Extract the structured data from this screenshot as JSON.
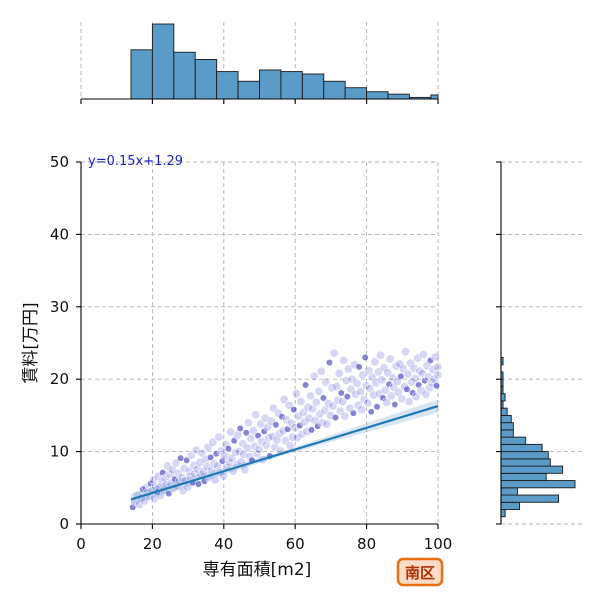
{
  "chart_data": {
    "type": "scatter",
    "xlabel": "専有面積[m2]",
    "ylabel": "賃料[万円]",
    "xlim": [
      0,
      100
    ],
    "ylim": [
      0,
      50
    ],
    "xticks": [
      0,
      20,
      40,
      60,
      80,
      100
    ],
    "yticks": [
      0,
      10,
      20,
      30,
      40,
      50
    ],
    "grid": true,
    "regression": {
      "equation": "y=0.15x+1.29",
      "slope": 0.15,
      "intercept": 1.29,
      "x_range": [
        14,
        100
      ]
    },
    "badge": "南区",
    "top_histogram": {
      "bin_edges": [
        14,
        20,
        26,
        32,
        38,
        44,
        50,
        56,
        62,
        68,
        74,
        80,
        86,
        92,
        98,
        104
      ],
      "counts": [
        61,
        93,
        58,
        49,
        34,
        22,
        36,
        34,
        31,
        22,
        14,
        9,
        6,
        2,
        5
      ]
    },
    "right_histogram": {
      "bin_edges": [
        1,
        2,
        3,
        4,
        5,
        6,
        7,
        8,
        9,
        10,
        11,
        12,
        13,
        14,
        15,
        16,
        17,
        18,
        19,
        20,
        21,
        22,
        23
      ],
      "counts": [
        2,
        9,
        28,
        8,
        36,
        22,
        30,
        24,
        23,
        20,
        12,
        6,
        6,
        5,
        3,
        1,
        2,
        1,
        1,
        1,
        0,
        1
      ]
    },
    "points": [
      [
        14.5,
        2.3
      ],
      [
        15.2,
        3.1
      ],
      [
        15.8,
        4.0
      ],
      [
        16.4,
        2.7
      ],
      [
        16.9,
        3.6
      ],
      [
        17.3,
        4.8
      ],
      [
        17.8,
        3.2
      ],
      [
        18.2,
        5.0
      ],
      [
        18.6,
        4.3
      ],
      [
        19.1,
        3.8
      ],
      [
        19.5,
        5.6
      ],
      [
        19.9,
        4.6
      ],
      [
        20.3,
        6.1
      ],
      [
        20.6,
        3.5
      ],
      [
        20.9,
        5.2
      ],
      [
        21.3,
        4.4
      ],
      [
        21.6,
        6.6
      ],
      [
        21.9,
        5.0
      ],
      [
        22.3,
        3.9
      ],
      [
        22.6,
        5.8
      ],
      [
        22.9,
        7.1
      ],
      [
        23.2,
        4.7
      ],
      [
        23.6,
        6.3
      ],
      [
        23.9,
        5.4
      ],
      [
        24.2,
        8.0
      ],
      [
        24.6,
        4.2
      ],
      [
        24.9,
        6.9
      ],
      [
        25.2,
        5.6
      ],
      [
        25.6,
        7.5
      ],
      [
        25.9,
        4.9
      ],
      [
        26.3,
        6.2
      ],
      [
        26.6,
        8.4
      ],
      [
        26.9,
        5.3
      ],
      [
        27.3,
        7.0
      ],
      [
        27.6,
        5.9
      ],
      [
        27.9,
        9.1
      ],
      [
        28.3,
        6.4
      ],
      [
        28.6,
        4.6
      ],
      [
        28.9,
        7.7
      ],
      [
        29.3,
        6.0
      ],
      [
        29.6,
        8.8
      ],
      [
        29.9,
        5.1
      ],
      [
        30.3,
        7.3
      ],
      [
        30.6,
        6.6
      ],
      [
        30.9,
        9.5
      ],
      [
        31.3,
        5.7
      ],
      [
        31.6,
        8.1
      ],
      [
        31.9,
        6.9
      ],
      [
        32.3,
        10.2
      ],
      [
        32.6,
        7.6
      ],
      [
        32.9,
        5.5
      ],
      [
        33.3,
        8.5
      ],
      [
        33.6,
        6.8
      ],
      [
        33.9,
        9.8
      ],
      [
        34.3,
        7.2
      ],
      [
        34.6,
        5.9
      ],
      [
        34.9,
        8.9
      ],
      [
        35.3,
        7.9
      ],
      [
        35.6,
        10.6
      ],
      [
        35.9,
        6.4
      ],
      [
        36.3,
        9.2
      ],
      [
        36.6,
        7.4
      ],
      [
        36.9,
        11.3
      ],
      [
        37.3,
        8.3
      ],
      [
        37.6,
        6.1
      ],
      [
        37.9,
        9.7
      ],
      [
        38.3,
        8.0
      ],
      [
        38.6,
        12.0
      ],
      [
        38.9,
        7.1
      ],
      [
        39.3,
        10.1
      ],
      [
        39.6,
        8.7
      ],
      [
        39.9,
        6.6
      ],
      [
        40.3,
        9.4
      ],
      [
        40.6,
        11.0
      ],
      [
        40.9,
        7.8
      ],
      [
        41.3,
        10.4
      ],
      [
        41.6,
        8.5
      ],
      [
        41.9,
        12.7
      ],
      [
        42.3,
        9.1
      ],
      [
        42.6,
        7.3
      ],
      [
        42.9,
        11.5
      ],
      [
        43.3,
        9.9
      ],
      [
        43.6,
        8.2
      ],
      [
        43.9,
        12.3
      ],
      [
        44.3,
        10.0
      ],
      [
        44.6,
        13.2
      ],
      [
        44.9,
        8.6
      ],
      [
        45.3,
        11.1
      ],
      [
        45.6,
        9.6
      ],
      [
        45.9,
        7.5
      ],
      [
        46.3,
        12.6
      ],
      [
        46.6,
        10.5
      ],
      [
        46.9,
        14.0
      ],
      [
        47.3,
        9.3
      ],
      [
        47.6,
        11.8
      ],
      [
        47.9,
        8.8
      ],
      [
        48.3,
        12.9
      ],
      [
        48.6,
        10.7
      ],
      [
        48.9,
        15.1
      ],
      [
        49.3,
        9.7
      ],
      [
        49.6,
        12.2
      ],
      [
        49.9,
        10.3
      ],
      [
        50.3,
        13.8
      ],
      [
        50.6,
        11.4
      ],
      [
        50.9,
        8.9
      ],
      [
        51.3,
        12.8
      ],
      [
        51.6,
        14.6
      ],
      [
        51.9,
        10.9
      ],
      [
        52.3,
        13.4
      ],
      [
        52.6,
        11.9
      ],
      [
        52.9,
        9.4
      ],
      [
        53.3,
        14.2
      ],
      [
        53.6,
        12.1
      ],
      [
        53.9,
        16.0
      ],
      [
        54.3,
        10.6
      ],
      [
        54.6,
        13.7
      ],
      [
        54.9,
        11.6
      ],
      [
        55.3,
        15.3
      ],
      [
        55.6,
        12.5
      ],
      [
        55.9,
        10.1
      ],
      [
        56.3,
        14.8
      ],
      [
        56.6,
        12.9
      ],
      [
        56.9,
        17.2
      ],
      [
        57.3,
        11.5
      ],
      [
        57.6,
        14.4
      ],
      [
        57.9,
        13.1
      ],
      [
        58.3,
        16.4
      ],
      [
        58.6,
        10.8
      ],
      [
        58.9,
        13.9
      ],
      [
        59.3,
        12.0
      ],
      [
        59.6,
        15.8
      ],
      [
        59.9,
        13.3
      ],
      [
        60.3,
        18.0
      ],
      [
        60.6,
        11.9
      ],
      [
        60.9,
        14.9
      ],
      [
        61.3,
        13.6
      ],
      [
        61.6,
        16.9
      ],
      [
        61.9,
        12.4
      ],
      [
        62.3,
        15.4
      ],
      [
        62.6,
        14.1
      ],
      [
        62.9,
        19.2
      ],
      [
        63.3,
        12.8
      ],
      [
        63.6,
        16.1
      ],
      [
        63.9,
        14.6
      ],
      [
        64.3,
        17.7
      ],
      [
        64.6,
        13.0
      ],
      [
        64.9,
        15.9
      ],
      [
        65.3,
        20.4
      ],
      [
        65.6,
        14.3
      ],
      [
        65.9,
        16.8
      ],
      [
        66.3,
        13.5
      ],
      [
        66.6,
        18.3
      ],
      [
        66.9,
        15.2
      ],
      [
        67.3,
        21.1
      ],
      [
        67.6,
        14.0
      ],
      [
        67.9,
        17.4
      ],
      [
        68.3,
        15.7
      ],
      [
        68.6,
        19.6
      ],
      [
        68.9,
        13.8
      ],
      [
        69.3,
        16.6
      ],
      [
        69.6,
        22.3
      ],
      [
        69.9,
        15.0
      ],
      [
        70.3,
        18.8
      ],
      [
        70.6,
        16.3
      ],
      [
        70.9,
        23.6
      ],
      [
        71.3,
        14.7
      ],
      [
        71.6,
        19.0
      ],
      [
        71.9,
        17.1
      ],
      [
        72.3,
        20.8
      ],
      [
        72.6,
        15.6
      ],
      [
        72.9,
        18.1
      ],
      [
        73.3,
        16.9
      ],
      [
        73.6,
        22.6
      ],
      [
        73.9,
        14.9
      ],
      [
        74.3,
        19.8
      ],
      [
        74.6,
        17.6
      ],
      [
        74.9,
        21.4
      ],
      [
        75.3,
        16.0
      ],
      [
        75.6,
        18.6
      ],
      [
        75.9,
        20.0
      ],
      [
        76.3,
        15.3
      ],
      [
        76.6,
        22.0
      ],
      [
        76.9,
        17.9
      ],
      [
        77.3,
        19.4
      ],
      [
        77.6,
        16.4
      ],
      [
        77.9,
        21.7
      ],
      [
        78.3,
        18.3
      ],
      [
        78.6,
        15.8
      ],
      [
        78.9,
        20.6
      ],
      [
        79.3,
        17.2
      ],
      [
        79.6,
        23.0
      ],
      [
        79.9,
        19.1
      ],
      [
        80.3,
        16.7
      ],
      [
        80.6,
        21.2
      ],
      [
        80.9,
        18.7
      ],
      [
        81.3,
        15.5
      ],
      [
        81.6,
        20.3
      ],
      [
        81.9,
        17.8
      ],
      [
        82.3,
        22.4
      ],
      [
        82.6,
        19.5
      ],
      [
        82.9,
        16.2
      ],
      [
        83.3,
        21.0
      ],
      [
        83.6,
        18.0
      ],
      [
        83.9,
        23.3
      ],
      [
        84.3,
        19.9
      ],
      [
        84.6,
        17.4
      ],
      [
        84.9,
        21.6
      ],
      [
        85.3,
        18.5
      ],
      [
        85.6,
        16.8
      ],
      [
        85.9,
        20.9
      ],
      [
        86.3,
        19.3
      ],
      [
        86.6,
        22.8
      ],
      [
        86.9,
        17.7
      ],
      [
        87.3,
        20.2
      ],
      [
        87.6,
        18.9
      ],
      [
        87.9,
        16.5
      ],
      [
        88.3,
        21.8
      ],
      [
        88.6,
        19.7
      ],
      [
        88.9,
        18.2
      ],
      [
        89.3,
        22.1
      ],
      [
        89.6,
        20.4
      ],
      [
        89.9,
        17.3
      ],
      [
        90.3,
        21.4
      ],
      [
        90.6,
        19.0
      ],
      [
        90.9,
        23.8
      ],
      [
        91.3,
        18.6
      ],
      [
        91.6,
        20.7
      ],
      [
        91.9,
        16.9
      ],
      [
        92.3,
        22.2
      ],
      [
        92.6,
        19.6
      ],
      [
        92.9,
        18.1
      ],
      [
        93.3,
        21.5
      ],
      [
        93.6,
        20.1
      ],
      [
        93.9,
        17.6
      ],
      [
        94.3,
        22.9
      ],
      [
        94.6,
        19.2
      ],
      [
        94.9,
        21.1
      ],
      [
        95.3,
        18.4
      ],
      [
        95.6,
        20.8
      ],
      [
        95.9,
        23.4
      ],
      [
        96.3,
        19.8
      ],
      [
        96.6,
        17.9
      ],
      [
        96.9,
        21.9
      ],
      [
        97.3,
        20.3
      ],
      [
        97.6,
        18.8
      ],
      [
        97.9,
        22.6
      ],
      [
        98.3,
        19.5
      ],
      [
        98.6,
        21.3
      ],
      [
        98.9,
        20.0
      ],
      [
        99.3,
        23.1
      ],
      [
        99.6,
        19.1
      ],
      [
        99.9,
        21.7
      ],
      [
        100.0,
        20.6
      ]
    ]
  }
}
